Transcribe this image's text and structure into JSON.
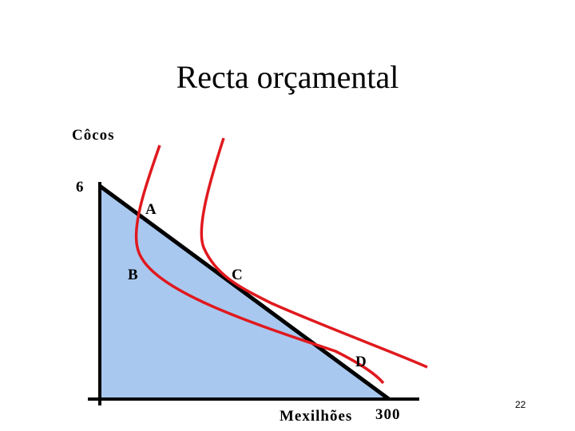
{
  "title": "Recta orçamental",
  "diagram": {
    "y_axis_label": "Côcos",
    "y_intercept_label": "6",
    "x_axis_label": "Mexilhões",
    "x_intercept_label": "300",
    "points": [
      "A",
      "B",
      "C",
      "D"
    ]
  },
  "page_number": "22"
}
